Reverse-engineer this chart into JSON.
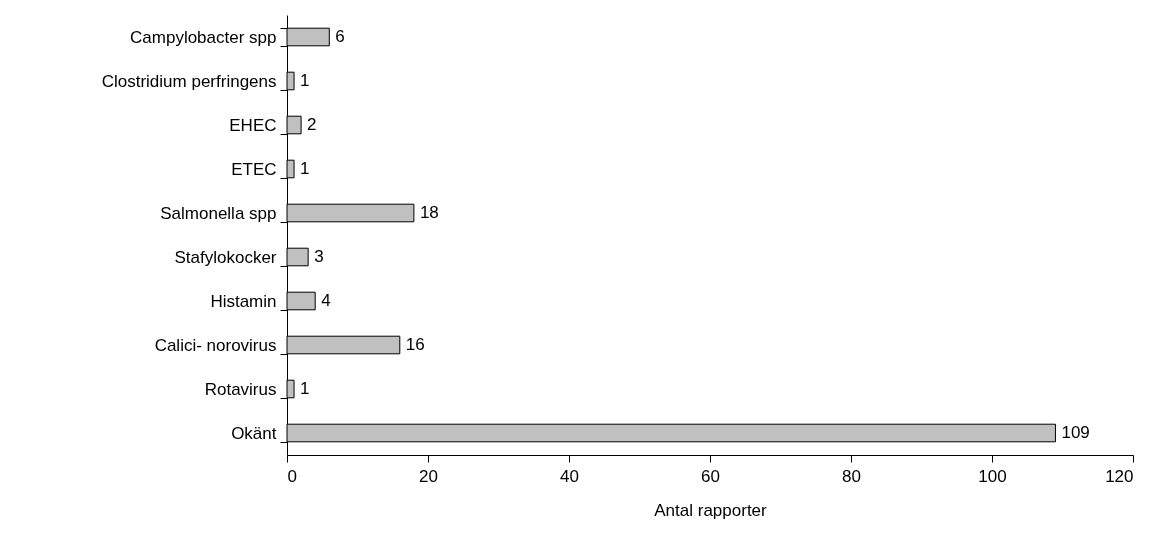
{
  "chart_data": {
    "type": "bar",
    "orientation": "horizontal",
    "xlabel": "Antal rapporter",
    "categories": [
      "Campylobacter spp",
      "Clostridium perfringens",
      "EHEC",
      "ETEC",
      "Salmonella spp",
      "Stafylokocker",
      "Histamin",
      "Calici- norovirus",
      "Rotavirus",
      "Okänt"
    ],
    "values": [
      6,
      1,
      2,
      1,
      18,
      3,
      4,
      16,
      1,
      109
    ],
    "color": "#c0c0c0",
    "xlim": [
      0,
      120
    ],
    "xticks": [
      0,
      20,
      40,
      60,
      80,
      100,
      120
    ],
    "data_labels": true,
    "grid": false
  }
}
